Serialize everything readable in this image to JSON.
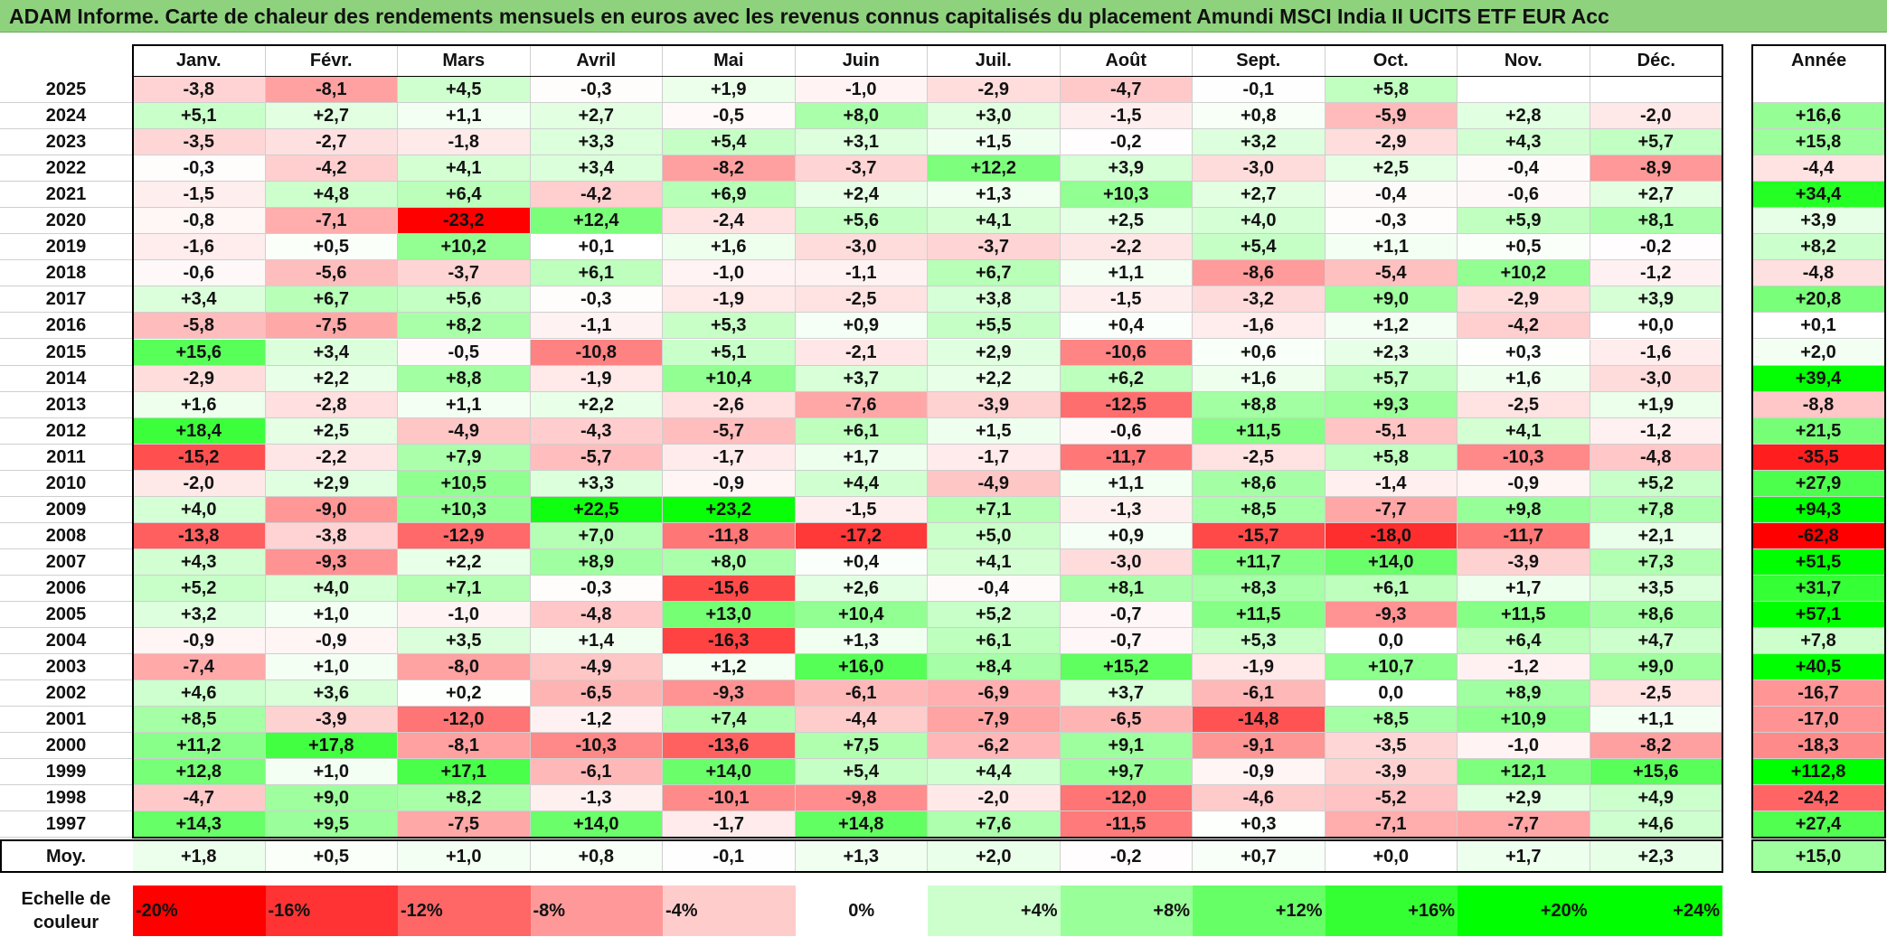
{
  "title": "ADAM Informe. Carte de chaleur des rendements mensuels en euros avec les revenus connus capitalisés du placement Amundi MSCI India II UCITS ETF EUR Acc",
  "chart_data": {
    "type": "heatmap",
    "months": [
      "Janv.",
      "Févr.",
      "Mars",
      "Avril",
      "Mai",
      "Juin",
      "Juil.",
      "Août",
      "Sept.",
      "Oct.",
      "Nov.",
      "Déc."
    ],
    "year_header": "Année",
    "avg_label": "Moy.",
    "rows": [
      {
        "year": "2025",
        "values": [
          "-3,8",
          "-8,1",
          "+4,5",
          "-0,3",
          "+1,9",
          "-1,0",
          "-2,9",
          "-4,7",
          "-0,1",
          "+5,8",
          "",
          ""
        ],
        "annual": ""
      },
      {
        "year": "2024",
        "values": [
          "+5,1",
          "+2,7",
          "+1,1",
          "+2,7",
          "-0,5",
          "+8,0",
          "+3,0",
          "-1,5",
          "+0,8",
          "-5,9",
          "+2,8",
          "-2,0"
        ],
        "annual": "+16,6"
      },
      {
        "year": "2023",
        "values": [
          "-3,5",
          "-2,7",
          "-1,8",
          "+3,3",
          "+5,4",
          "+3,1",
          "+1,5",
          "-0,2",
          "+3,2",
          "-2,9",
          "+4,3",
          "+5,7"
        ],
        "annual": "+15,8"
      },
      {
        "year": "2022",
        "values": [
          "-0,3",
          "-4,2",
          "+4,1",
          "+3,4",
          "-8,2",
          "-3,7",
          "+12,2",
          "+3,9",
          "-3,0",
          "+2,5",
          "-0,4",
          "-8,9"
        ],
        "annual": "-4,4"
      },
      {
        "year": "2021",
        "values": [
          "-1,5",
          "+4,8",
          "+6,4",
          "-4,2",
          "+6,9",
          "+2,4",
          "+1,3",
          "+10,3",
          "+2,7",
          "-0,4",
          "-0,6",
          "+2,7"
        ],
        "annual": "+34,4"
      },
      {
        "year": "2020",
        "values": [
          "-0,8",
          "-7,1",
          "-23,2",
          "+12,4",
          "-2,4",
          "+5,6",
          "+4,1",
          "+2,5",
          "+4,0",
          "-0,3",
          "+5,9",
          "+8,1"
        ],
        "annual": "+3,9"
      },
      {
        "year": "2019",
        "values": [
          "-1,6",
          "+0,5",
          "+10,2",
          "+0,1",
          "+1,6",
          "-3,0",
          "-3,7",
          "-2,2",
          "+5,4",
          "+1,1",
          "+0,5",
          "-0,2"
        ],
        "annual": "+8,2"
      },
      {
        "year": "2018",
        "values": [
          "-0,6",
          "-5,6",
          "-3,7",
          "+6,1",
          "-1,0",
          "-1,1",
          "+6,7",
          "+1,1",
          "-8,6",
          "-5,4",
          "+10,2",
          "-1,2"
        ],
        "annual": "-4,8"
      },
      {
        "year": "2017",
        "values": [
          "+3,4",
          "+6,7",
          "+5,6",
          "-0,3",
          "-1,9",
          "-2,5",
          "+3,8",
          "-1,5",
          "-3,2",
          "+9,0",
          "-2,9",
          "+3,9"
        ],
        "annual": "+20,8"
      },
      {
        "year": "2016",
        "values": [
          "-5,8",
          "-7,5",
          "+8,2",
          "-1,1",
          "+5,3",
          "+0,9",
          "+5,5",
          "+0,4",
          "-1,6",
          "+1,2",
          "-4,2",
          "+0,0"
        ],
        "annual": "+0,1"
      },
      {
        "year": "2015",
        "values": [
          "+15,6",
          "+3,4",
          "-0,5",
          "-10,8",
          "+5,1",
          "-2,1",
          "+2,9",
          "-10,6",
          "+0,6",
          "+2,3",
          "+0,3",
          "-1,6"
        ],
        "annual": "+2,0"
      },
      {
        "year": "2014",
        "values": [
          "-2,9",
          "+2,2",
          "+8,8",
          "-1,9",
          "+10,4",
          "+3,7",
          "+2,2",
          "+6,2",
          "+1,6",
          "+5,7",
          "+1,6",
          "-3,0"
        ],
        "annual": "+39,4"
      },
      {
        "year": "2013",
        "values": [
          "+1,6",
          "-2,8",
          "+1,1",
          "+2,2",
          "-2,6",
          "-7,6",
          "-3,9",
          "-12,5",
          "+8,8",
          "+9,3",
          "-2,5",
          "+1,9"
        ],
        "annual": "-8,8"
      },
      {
        "year": "2012",
        "values": [
          "+18,4",
          "+2,5",
          "-4,9",
          "-4,3",
          "-5,7",
          "+6,1",
          "+1,5",
          "-0,6",
          "+11,5",
          "-5,1",
          "+4,1",
          "-1,2"
        ],
        "annual": "+21,5"
      },
      {
        "year": "2011",
        "values": [
          "-15,2",
          "-2,2",
          "+7,9",
          "-5,7",
          "-1,7",
          "+1,7",
          "-1,7",
          "-11,7",
          "-2,5",
          "+5,8",
          "-10,3",
          "-4,8"
        ],
        "annual": "-35,5"
      },
      {
        "year": "2010",
        "values": [
          "-2,0",
          "+2,9",
          "+10,5",
          "+3,3",
          "-0,9",
          "+4,4",
          "-4,9",
          "+1,1",
          "+8,6",
          "-1,4",
          "-0,9",
          "+5,2"
        ],
        "annual": "+27,9"
      },
      {
        "year": "2009",
        "values": [
          "+4,0",
          "-9,0",
          "+10,3",
          "+22,5",
          "+23,2",
          "-1,5",
          "+7,1",
          "-1,3",
          "+8,5",
          "-7,7",
          "+9,8",
          "+7,8"
        ],
        "annual": "+94,3"
      },
      {
        "year": "2008",
        "values": [
          "-13,8",
          "-3,8",
          "-12,9",
          "+7,0",
          "-11,8",
          "-17,2",
          "+5,0",
          "+0,9",
          "-15,7",
          "-18,0",
          "-11,7",
          "+2,1"
        ],
        "annual": "-62,8"
      },
      {
        "year": "2007",
        "values": [
          "+4,3",
          "-9,3",
          "+2,2",
          "+8,9",
          "+8,0",
          "+0,4",
          "+4,1",
          "-3,0",
          "+11,7",
          "+14,0",
          "-3,9",
          "+7,3"
        ],
        "annual": "+51,5"
      },
      {
        "year": "2006",
        "values": [
          "+5,2",
          "+4,0",
          "+7,1",
          "-0,3",
          "-15,6",
          "+2,6",
          "-0,4",
          "+8,1",
          "+8,3",
          "+6,1",
          "+1,7",
          "+3,5"
        ],
        "annual": "+31,7"
      },
      {
        "year": "2005",
        "values": [
          "+3,2",
          "+1,0",
          "-1,0",
          "-4,8",
          "+13,0",
          "+10,4",
          "+5,2",
          "-0,7",
          "+11,5",
          "-9,3",
          "+11,5",
          "+8,6"
        ],
        "annual": "+57,1"
      },
      {
        "year": "2004",
        "values": [
          "-0,9",
          "-0,9",
          "+3,5",
          "+1,4",
          "-16,3",
          "+1,3",
          "+6,1",
          "-0,7",
          "+5,3",
          "0,0",
          "+6,4",
          "+4,7"
        ],
        "annual": "+7,8"
      },
      {
        "year": "2003",
        "values": [
          "-7,4",
          "+1,0",
          "-8,0",
          "-4,9",
          "+1,2",
          "+16,0",
          "+8,4",
          "+15,2",
          "-1,9",
          "+10,7",
          "-1,2",
          "+9,0"
        ],
        "annual": "+40,5"
      },
      {
        "year": "2002",
        "values": [
          "+4,6",
          "+3,6",
          "+0,2",
          "-6,5",
          "-9,3",
          "-6,1",
          "-6,9",
          "+3,7",
          "-6,1",
          "0,0",
          "+8,9",
          "-2,5"
        ],
        "annual": "-16,7"
      },
      {
        "year": "2001",
        "values": [
          "+8,5",
          "-3,9",
          "-12,0",
          "-1,2",
          "+7,4",
          "-4,4",
          "-7,9",
          "-6,5",
          "-14,8",
          "+8,5",
          "+10,9",
          "+1,1"
        ],
        "annual": "-17,0"
      },
      {
        "year": "2000",
        "values": [
          "+11,2",
          "+17,8",
          "-8,1",
          "-10,3",
          "-13,6",
          "+7,5",
          "-6,2",
          "+9,1",
          "-9,1",
          "-3,5",
          "-1,0",
          "-8,2"
        ],
        "annual": "-18,3"
      },
      {
        "year": "1999",
        "values": [
          "+12,8",
          "+1,0",
          "+17,1",
          "-6,1",
          "+14,0",
          "+5,4",
          "+4,4",
          "+9,7",
          "-0,9",
          "-3,9",
          "+12,1",
          "+15,6"
        ],
        "annual": "+112,8"
      },
      {
        "year": "1998",
        "values": [
          "-4,7",
          "+9,0",
          "+8,2",
          "-1,3",
          "-10,1",
          "-9,8",
          "-2,0",
          "-12,0",
          "-4,6",
          "-5,2",
          "+2,9",
          "+4,9"
        ],
        "annual": "-24,2"
      },
      {
        "year": "1997",
        "values": [
          "+14,3",
          "+9,5",
          "-7,5",
          "+14,0",
          "-1,7",
          "+14,8",
          "+7,6",
          "-11,5",
          "+0,3",
          "-7,1",
          "-7,7",
          "+4,6"
        ],
        "annual": "+27,4"
      }
    ],
    "average": {
      "values": [
        "+1,8",
        "+0,5",
        "+1,0",
        "+0,8",
        "-0,1",
        "+1,3",
        "+2,0",
        "-0,2",
        "+0,7",
        "+0,0",
        "+1,7",
        "+2,3"
      ],
      "annual": "+15,0"
    },
    "scale": {
      "label": "Echelle de couleur",
      "steps": [
        {
          "label": "-20%",
          "value": -20,
          "color": "#ff0000"
        },
        {
          "label": "-16%",
          "value": -16,
          "color": "#ff3333"
        },
        {
          "label": "-12%",
          "value": -12,
          "color": "#ff6666"
        },
        {
          "label": "-8%",
          "value": -8,
          "color": "#ff9999"
        },
        {
          "label": "-4%",
          "value": -4,
          "color": "#ffcccc"
        },
        {
          "label": "0%",
          "value": 0,
          "color": "#ffffff"
        },
        {
          "label": "+4%",
          "value": 4,
          "color": "#ccffcc"
        },
        {
          "label": "+8%",
          "value": 8,
          "color": "#99ff99"
        },
        {
          "label": "+12%",
          "value": 12,
          "color": "#66ff66"
        },
        {
          "label": "+16%",
          "value": 16,
          "color": "#33ff33"
        },
        {
          "label": "+20%",
          "value": 20,
          "color": "#00ff00"
        },
        {
          "label": "+24%",
          "value": 24,
          "color": "#00ff00"
        }
      ]
    }
  }
}
